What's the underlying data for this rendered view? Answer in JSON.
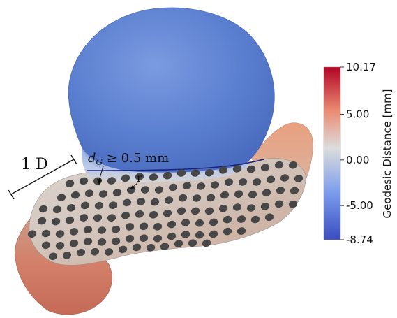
{
  "figure": {
    "annotation_diameter": "1 D",
    "annotation_threshold": "d",
    "annotation_threshold_sub": "G",
    "annotation_threshold_rest": " ≥ 0.5 mm",
    "annotation_radius": "r"
  },
  "colorbar": {
    "title": "Geodesic Distance [mm]",
    "ticks": [
      "10.17",
      "5.00",
      "0.00",
      "-5.00",
      "-8.74"
    ],
    "tick_values": [
      10.17,
      5.0,
      0.0,
      -5.0,
      -8.74
    ],
    "min": -8.74,
    "max": 10.17,
    "colors": [
      "#3b4cc0",
      "#7a9cec",
      "#dcdddd",
      "#ea8a70",
      "#b40426"
    ]
  },
  "colors": {
    "aneurysm": "#5b7fd0",
    "neck_line": "#1a237e",
    "struts": "#474747"
  }
}
